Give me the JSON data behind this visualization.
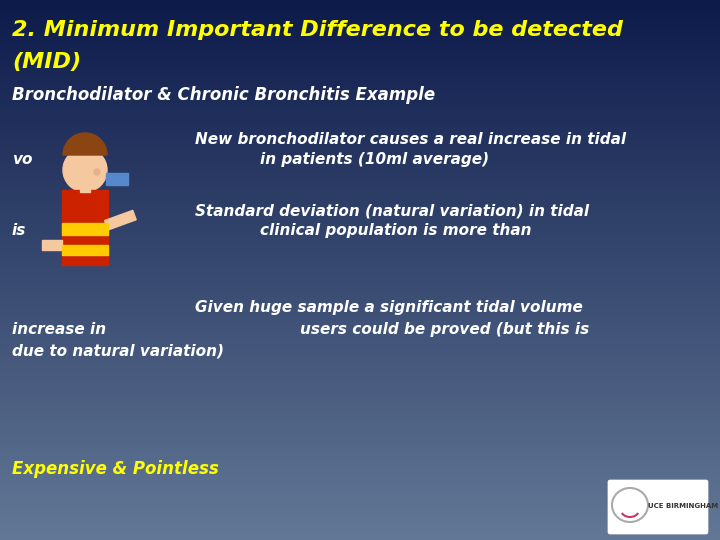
{
  "title_line1": "2. Minimum Important Difference to be detected",
  "title_line2": "(MID)",
  "subtitle": "Bronchodilator & Chronic Bronchitis Example",
  "bullet1_line1": "New bronchodilator causes a real increase in tidal",
  "bullet1_line2_prefix": "vo",
  "bullet1_line2_center": "in patients (10ml average)",
  "bullet2_line1": "Standard deviation (natural variation) in tidal",
  "bullet2_line2_prefix": "is",
  "bullet2_line2_center": "clinical population is more than",
  "bullet3_line1": "Given huge sample a significant tidal volume",
  "bullet3_line2_a": "increase in",
  "bullet3_line2_b": "users could be proved (but this is",
  "bullet3_line3": "due to natural variation)",
  "footer": "Expensive & Pointless",
  "bg_top": "#0d1b4b",
  "bg_bottom": "#637896",
  "title_color": "#ffff00",
  "text_color": "#ffffff",
  "footer_color": "#ffff00",
  "title_fontsize": 16,
  "subtitle_fontsize": 12,
  "body_fontsize": 11,
  "footer_fontsize": 12,
  "fig_width": 7.2,
  "fig_height": 5.4,
  "dpi": 100
}
